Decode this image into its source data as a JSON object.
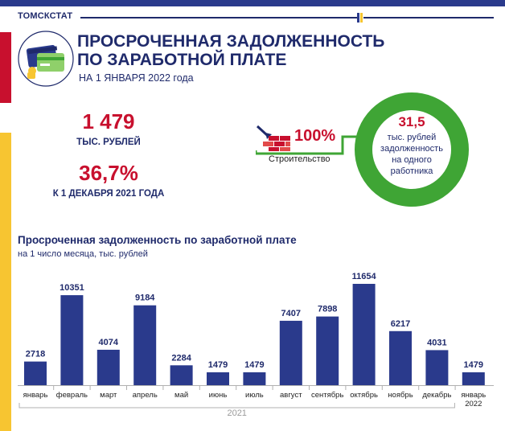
{
  "header": {
    "brand": "ТОМСКСТАТ",
    "title_line1": "ПРОСРОЧЕННАЯ ЗАДОЛЖЕННОСТЬ",
    "title_line2": "ПО ЗАРАБОТНОЙ ПЛАТЕ",
    "date": "НА 1 ЯНВАРЯ 2022 года"
  },
  "summary": {
    "total_value": "1 479",
    "total_unit": "ТЫС. РУБЛЕЙ",
    "change_value": "36,7%",
    "change_caption": "К 1 ДЕКАБРЯ 2021 ГОДА"
  },
  "sector": {
    "share": "100%",
    "name": "Строительство"
  },
  "per_worker": {
    "value": "31,5",
    "caption_line1": "тыс. рублей",
    "caption_line2": "задолженность",
    "caption_line3": "на одного",
    "caption_line4": "работника"
  },
  "colors": {
    "accent_red": "#c8102e",
    "bar_navy": "#2a3a8c",
    "ring_green": "#3fa535",
    "side_yellow": "#f7c531"
  },
  "icons": [
    "credit-cards-icon",
    "brick-wall-trowel-icon"
  ],
  "chart_data": {
    "type": "bar",
    "title": "Просроченная задолженность по заработной плате",
    "subtitle": "на 1 число месяца, тыс. рублей",
    "categories": [
      "январь",
      "февраль",
      "март",
      "апрель",
      "май",
      "июнь",
      "июль",
      "август",
      "сентябрь",
      "октябрь",
      "ноябрь",
      "декабрь",
      "январь 2022"
    ],
    "values": [
      2718,
      10351,
      4074,
      9184,
      2284,
      1479,
      1479,
      7407,
      7898,
      11654,
      6217,
      4031,
      1479
    ],
    "group_label": "2021",
    "ylim": [
      0,
      11654
    ],
    "grid": false,
    "data_labels": true
  }
}
